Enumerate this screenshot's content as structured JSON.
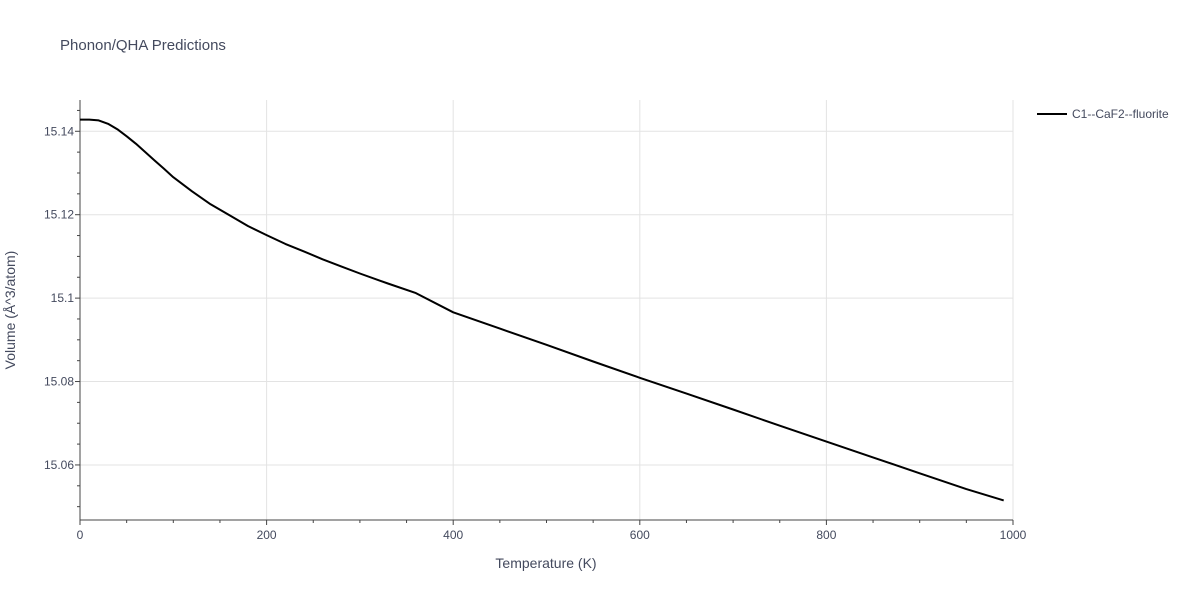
{
  "chart_data": {
    "type": "line",
    "title": "Phonon/QHA Predictions",
    "xlabel": "Temperature (K)",
    "ylabel": "Volume (Å^3/atom)",
    "xlim": [
      0,
      1000
    ],
    "ylim": [
      15.0468,
      15.1475
    ],
    "xticks": [
      0,
      200,
      400,
      600,
      800,
      1000
    ],
    "xtick_labels": [
      "0",
      "200",
      "400",
      "600",
      "800",
      "1000"
    ],
    "yticks": [
      15.06,
      15.08,
      15.1,
      15.12,
      15.14
    ],
    "ytick_labels": [
      "15.06",
      "15.08",
      "15.1",
      "15.12",
      "15.14"
    ],
    "grid": true,
    "legend_position": "top-right",
    "series": [
      {
        "name": "C1--CaF2--fluorite",
        "color": "#000000",
        "x": [
          0,
          10,
          20,
          30,
          40,
          50,
          60,
          70,
          80,
          90,
          100,
          120,
          140,
          160,
          180,
          200,
          220,
          240,
          260,
          280,
          300,
          330,
          360,
          400,
          450,
          500,
          550,
          600,
          650,
          700,
          750,
          800,
          850,
          900,
          950,
          990
        ],
        "y": [
          15.1428,
          15.1428,
          15.1426,
          15.1418,
          15.1405,
          15.1388,
          15.137,
          15.135,
          15.133,
          15.131,
          15.129,
          15.1256,
          15.1225,
          15.1199,
          15.1173,
          15.1151,
          15.113,
          15.1112,
          15.1093,
          15.1076,
          15.1059,
          15.1035,
          15.1012,
          15.0966,
          15.0927,
          15.0888,
          15.0848,
          15.0809,
          15.0771,
          15.0733,
          15.0694,
          15.0656,
          15.0618,
          15.058,
          15.0542,
          15.0515
        ]
      }
    ]
  }
}
